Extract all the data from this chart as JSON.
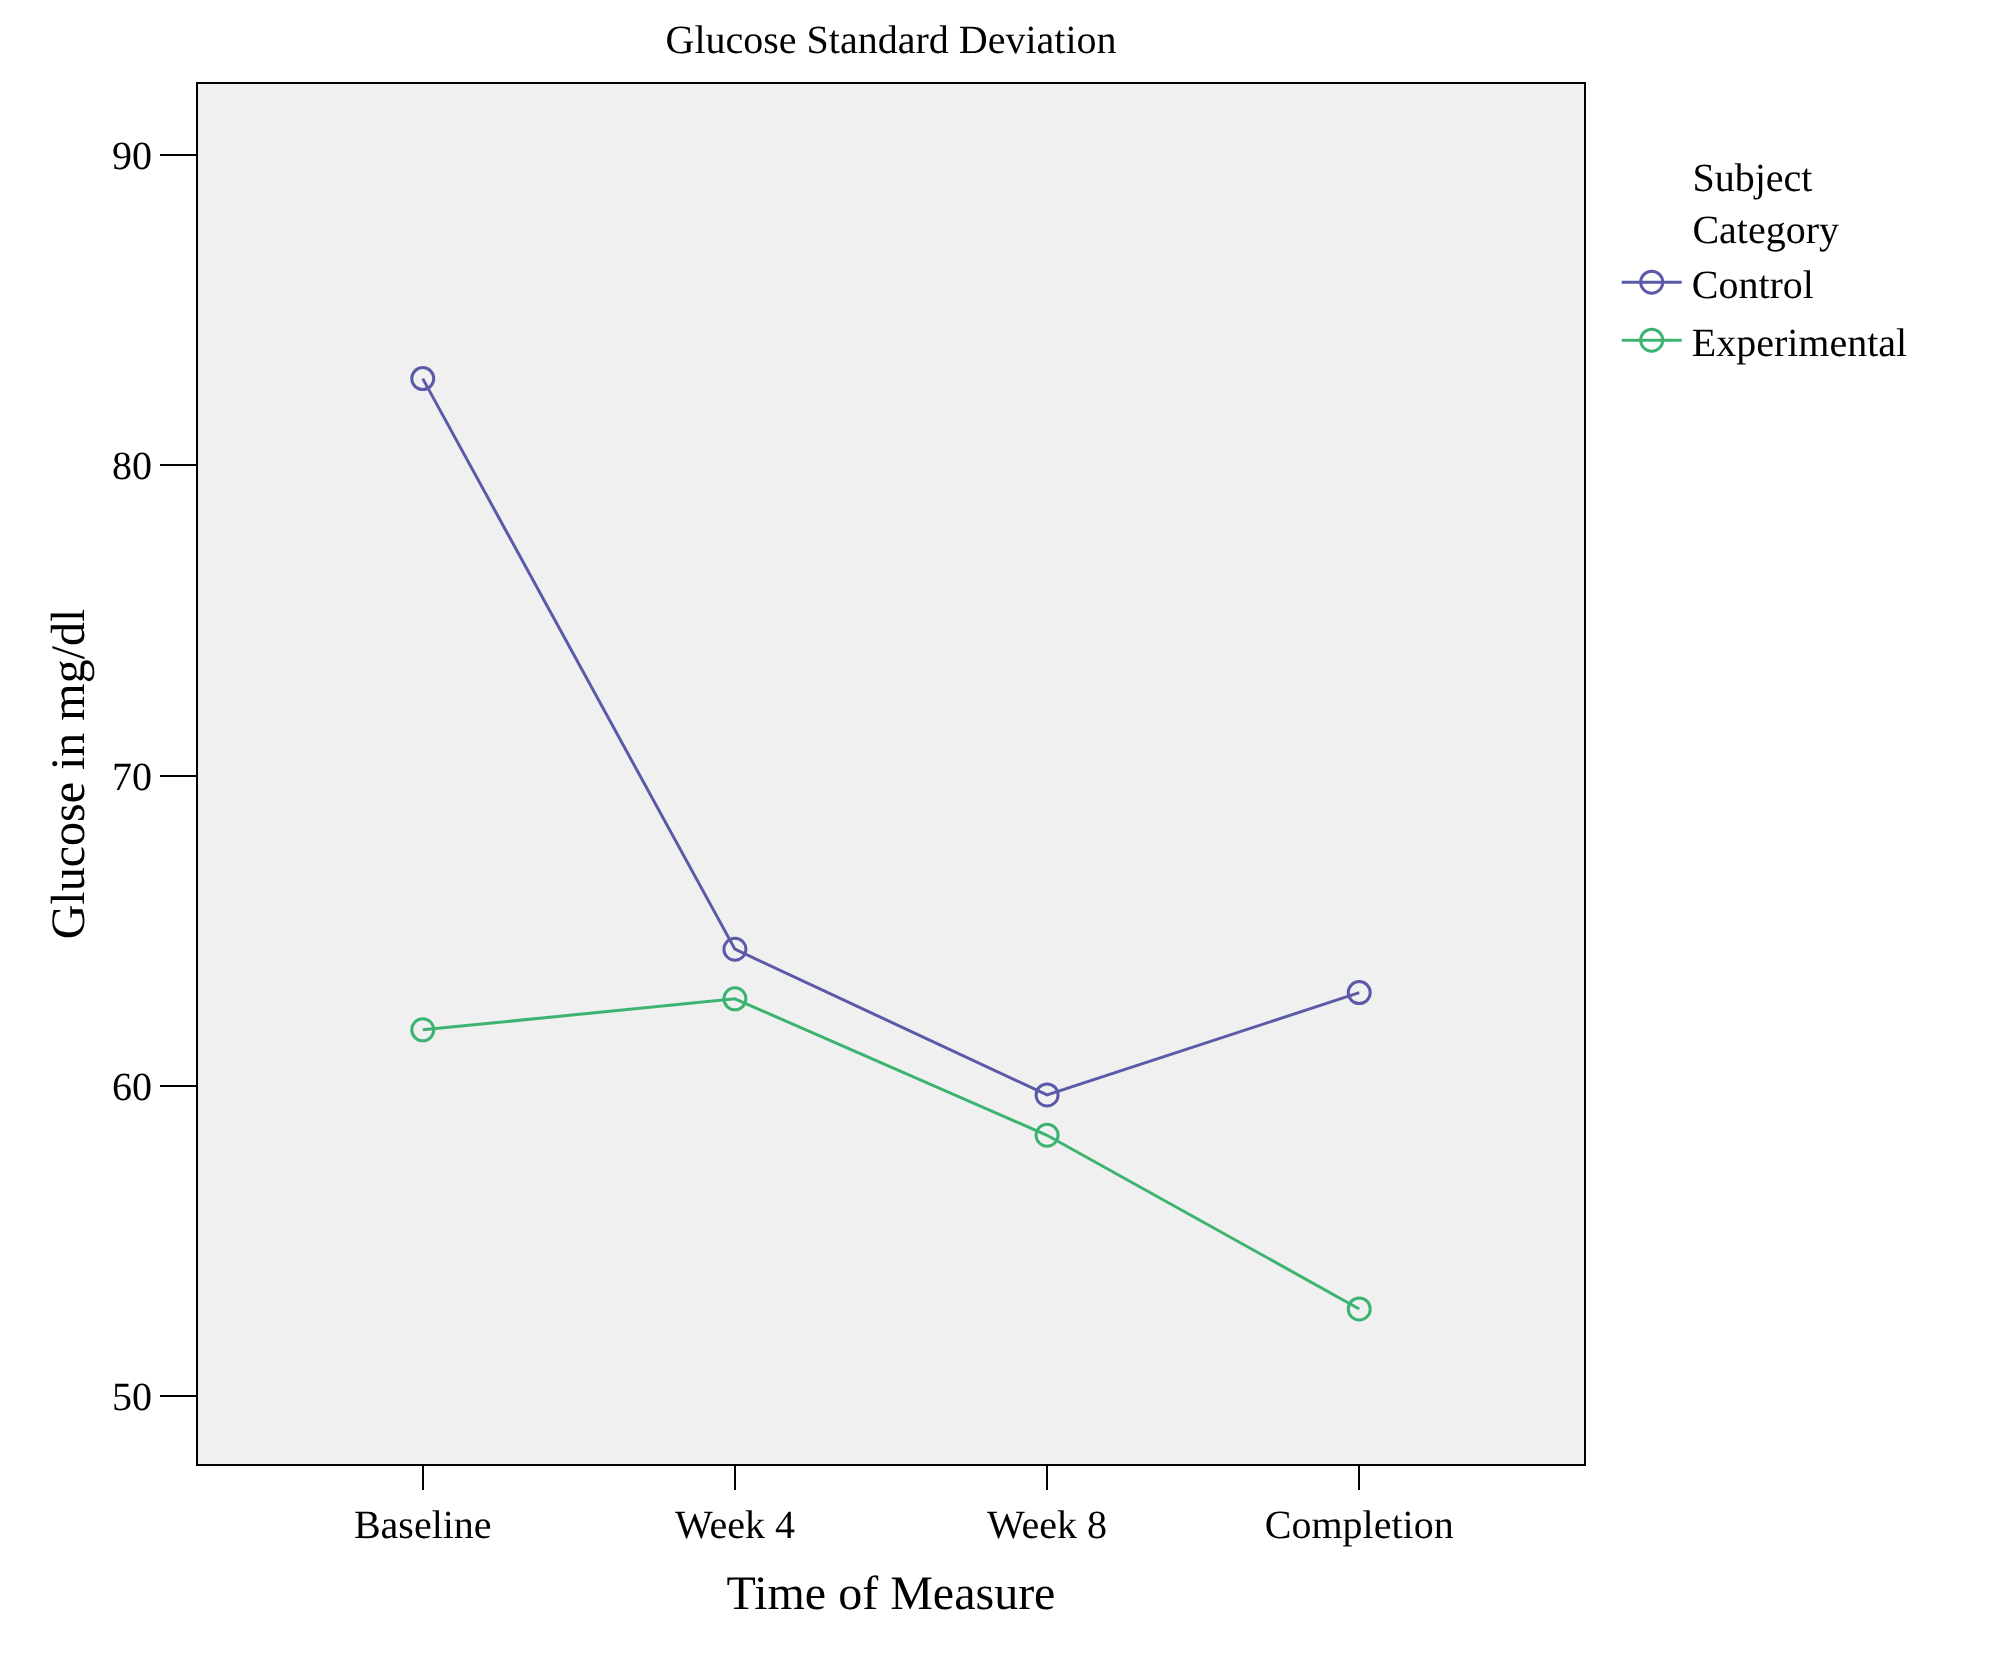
{
  "chart_data": {
    "type": "line",
    "title": "Glucose Standard Deviation",
    "xlabel": "Time of Measure",
    "ylabel": "Glucose in mg/dl",
    "legend_title": "Subject Category",
    "categories": [
      "Baseline",
      "Week 4",
      "Week 8",
      "Completion"
    ],
    "series": [
      {
        "name": "Control",
        "color": "#5a5aa8",
        "values": [
          82.8,
          64.4,
          59.7,
          63.0
        ]
      },
      {
        "name": "Experimental",
        "color": "#3cb371",
        "values": [
          61.8,
          62.8,
          58.4,
          52.8
        ]
      }
    ],
    "ylim": [
      47.8,
      92.3
    ],
    "yticks": [
      50,
      60,
      70,
      80,
      90
    ],
    "grid": false,
    "legend": "top right",
    "marker": "circle",
    "line_style": "solid"
  }
}
